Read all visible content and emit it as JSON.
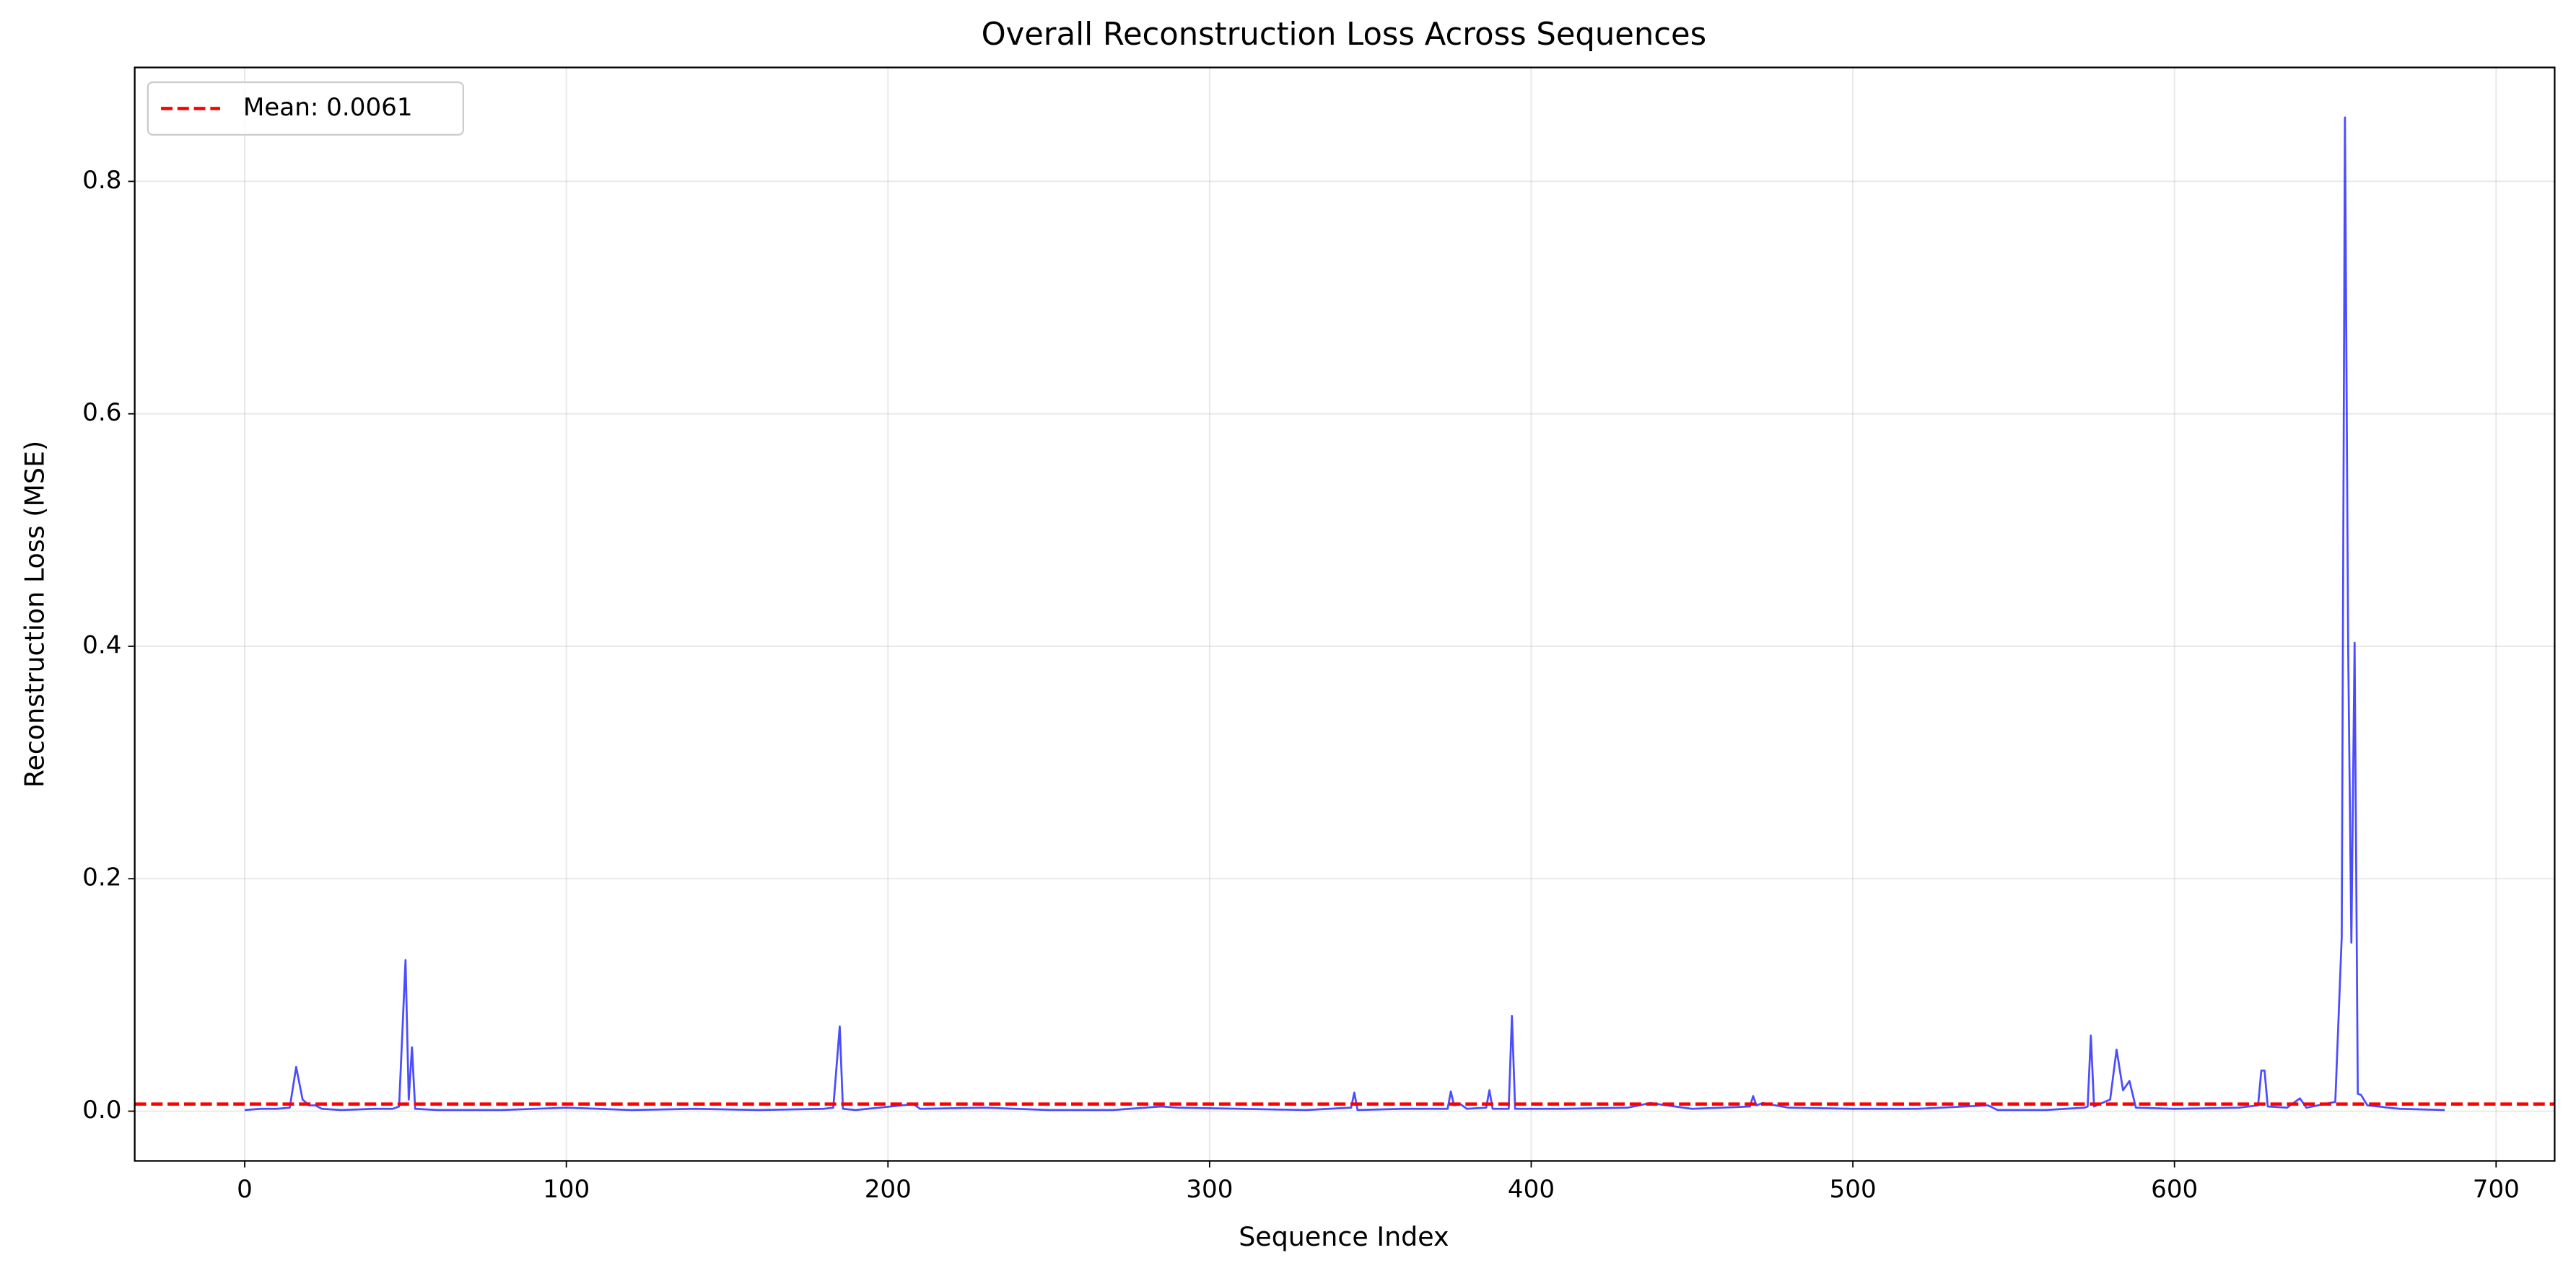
{
  "chart_data": {
    "type": "line",
    "title": "Overall Reconstruction Loss Across Sequences",
    "x_label": "Sequence Index",
    "y_label": "Reconstruction Loss (MSE)",
    "xlim": [
      -34.2,
      718.2
    ],
    "ylim": [
      -0.0428,
      0.898
    ],
    "xticks": [
      0,
      100,
      200,
      300,
      400,
      500,
      600,
      700
    ],
    "yticks": [
      {
        "value": 0,
        "label": "0.0"
      },
      0.2,
      0.4,
      0.6,
      0.8
    ],
    "grid": true,
    "legend_position": "upper left",
    "mean": 0.0061,
    "mean_label": "Mean: 0.0061",
    "mean_color": "#ff0000",
    "series": [
      {
        "color": "#0000ff",
        "x": [
          0,
          5,
          10,
          14,
          16,
          18,
          20,
          22,
          24,
          30,
          40,
          46,
          48,
          50,
          51,
          52,
          53,
          60,
          80,
          100,
          120,
          140,
          160,
          180,
          183,
          185,
          186,
          190,
          208,
          210,
          230,
          250,
          270,
          285,
          290,
          310,
          330,
          344,
          345,
          346,
          360,
          374,
          375,
          376,
          378,
          380,
          386,
          387,
          388,
          393,
          394,
          395,
          410,
          430,
          437,
          450,
          468,
          469,
          470,
          472,
          480,
          500,
          520,
          542,
          545,
          560,
          572,
          573,
          574,
          575,
          580,
          582,
          584,
          586,
          588,
          600,
          620,
          626,
          627,
          628,
          629,
          635,
          639,
          641,
          650,
          652,
          653,
          654,
          655,
          656,
          657,
          658,
          660,
          670,
          684
        ],
        "values": [
          0.001,
          0.002,
          0.002,
          0.003,
          0.038,
          0.01,
          0.005,
          0.005,
          0.002,
          0.001,
          0.002,
          0.002,
          0.004,
          0.13,
          0.01,
          0.055,
          0.002,
          0.001,
          0.001,
          0.003,
          0.001,
          0.002,
          0.001,
          0.002,
          0.003,
          0.073,
          0.002,
          0.001,
          0.006,
          0.002,
          0.003,
          0.001,
          0.001,
          0.004,
          0.003,
          0.002,
          0.001,
          0.003,
          0.016,
          0.001,
          0.002,
          0.002,
          0.017,
          0.005,
          0.006,
          0.002,
          0.003,
          0.018,
          0.002,
          0.002,
          0.082,
          0.002,
          0.002,
          0.003,
          0.007,
          0.002,
          0.004,
          0.013,
          0.005,
          0.007,
          0.003,
          0.002,
          0.002,
          0.005,
          0.001,
          0.001,
          0.003,
          0.004,
          0.065,
          0.004,
          0.01,
          0.053,
          0.018,
          0.026,
          0.003,
          0.002,
          0.003,
          0.005,
          0.035,
          0.035,
          0.004,
          0.003,
          0.011,
          0.003,
          0.008,
          0.15,
          0.855,
          0.4,
          0.145,
          0.403,
          0.015,
          0.014,
          0.005,
          0.002,
          0.001
        ]
      }
    ]
  }
}
